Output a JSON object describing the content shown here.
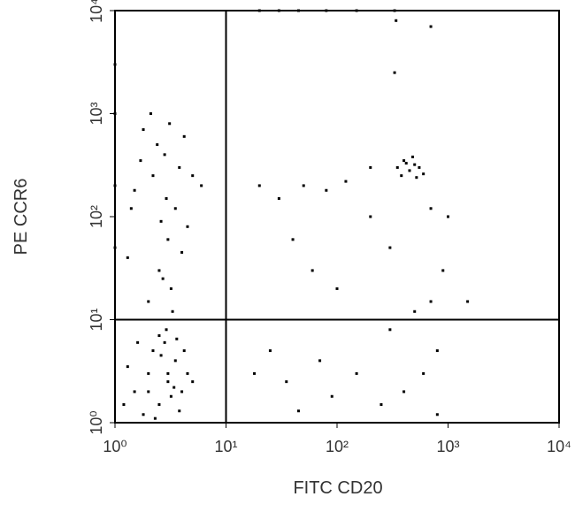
{
  "chart_data": {
    "type": "scatter",
    "x_label": "FITC CD20",
    "y_label": "PE CCR6",
    "xscale": "log",
    "yscale": "log",
    "xlim": [
      1,
      10000
    ],
    "ylim": [
      1,
      10000
    ],
    "xticks": [
      {
        "value": 1,
        "label": "10⁰"
      },
      {
        "value": 10,
        "label": "10¹"
      },
      {
        "value": 100,
        "label": "10²"
      },
      {
        "value": 1000,
        "label": "10³"
      },
      {
        "value": 10000,
        "label": "10⁴"
      }
    ],
    "yticks": [
      {
        "value": 1,
        "label": "10⁰"
      },
      {
        "value": 10,
        "label": "10¹"
      },
      {
        "value": 100,
        "label": "10²"
      },
      {
        "value": 1000,
        "label": "10³"
      },
      {
        "value": 10000,
        "label": "10⁴"
      }
    ],
    "quadrant": {
      "x": 10,
      "y": 10
    },
    "color": "#000000",
    "x": [
      1.5,
      2,
      2.5,
      3,
      3.5,
      4,
      2.2,
      2.8,
      1.8,
      3.2,
      4.5,
      2.5,
      1.3,
      3.8,
      2,
      3,
      2.6,
      1.6,
      4.2,
      5,
      2.3,
      3.4,
      1.2,
      2.9,
      3.6,
      2,
      2.5,
      3,
      3.5,
      2.2,
      2.8,
      1.8,
      3.2,
      4,
      2.6,
      1.5,
      3.8,
      2.4,
      5,
      4.5,
      1.3,
      2.9,
      3.3,
      2.1,
      6,
      1.7,
      4.2,
      2.7,
      3.1,
      1.4,
      350,
      400,
      450,
      500,
      550,
      600,
      380,
      420,
      480,
      520,
      20,
      30,
      50,
      80,
      120,
      200,
      40,
      60,
      100,
      300,
      500,
      700,
      800,
      600,
      400,
      250,
      150,
      70,
      35,
      25,
      18,
      900,
      1000,
      700,
      200,
      300,
      90,
      45,
      800,
      1500,
      20,
      30,
      45,
      80,
      150,
      330,
      340,
      700,
      330,
      1,
      1,
      1,
      1
    ],
    "values": [
      2,
      3,
      1.5,
      2.5,
      4,
      2,
      5,
      6,
      1.2,
      1.8,
      3,
      7,
      3.5,
      1.3,
      2,
      3,
      4.5,
      6,
      5,
      2.5,
      1.1,
      2.2,
      1.5,
      8,
      6.5,
      15,
      30,
      60,
      120,
      250,
      400,
      700,
      20,
      45,
      90,
      180,
      300,
      500,
      250,
      80,
      40,
      150,
      12,
      1000,
      200,
      350,
      600,
      25,
      800,
      120,
      300,
      350,
      280,
      320,
      300,
      260,
      250,
      330,
      380,
      240,
      200,
      150,
      200,
      180,
      220,
      100,
      60,
      30,
      20,
      50,
      12,
      15,
      5,
      3,
      2,
      1.5,
      3,
      4,
      2.5,
      5,
      3,
      30,
      100,
      120,
      300,
      8,
      1.8,
      1.3,
      1.2,
      15,
      10000,
      10000,
      10000,
      10000,
      10000,
      10000,
      8000,
      7000,
      2500,
      50,
      200,
      3000,
      1000
    ]
  }
}
